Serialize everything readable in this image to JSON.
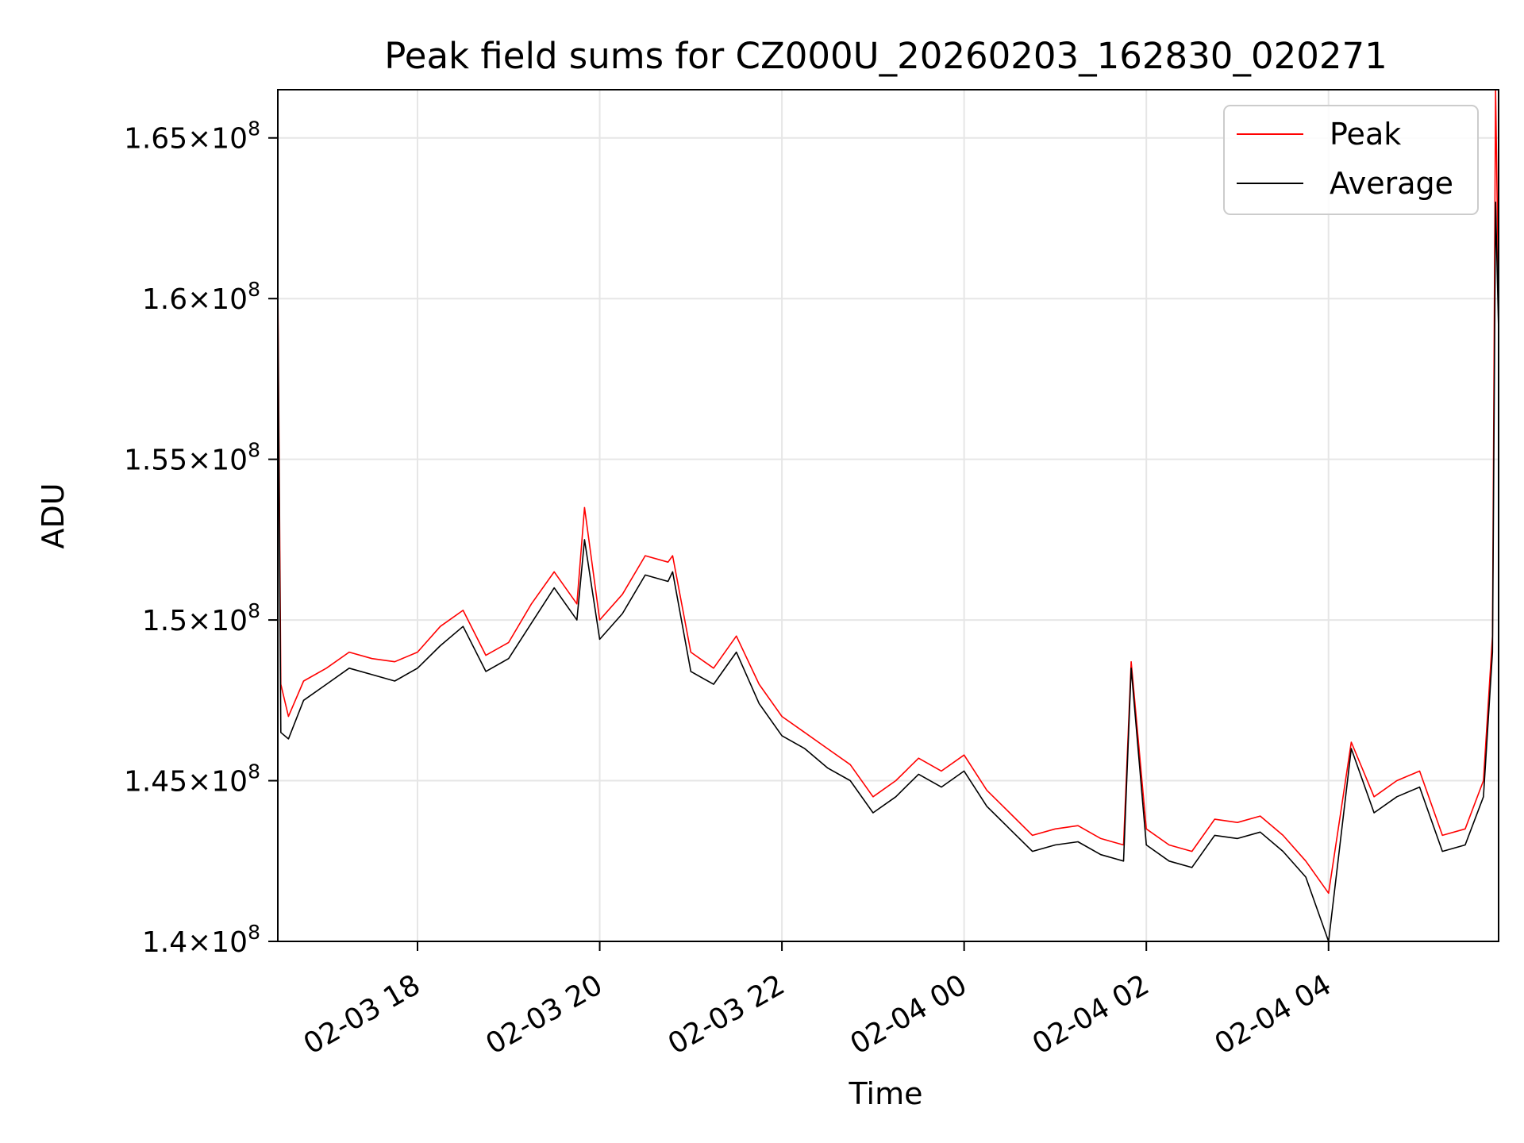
{
  "chart_data": {
    "type": "line",
    "title": "Peak field sums for CZ000U_20260203_162830_020271",
    "xlabel": "Time",
    "ylabel": "ADU",
    "ylim": [
      140000000,
      166500000
    ],
    "xlim": [
      "2026-02-03 16:28",
      "2026-02-04 05:52"
    ],
    "grid": true,
    "legend_position": "top-right",
    "x_ticks": [
      {
        "value": "2026-02-03 18:00",
        "label": "02-03 18"
      },
      {
        "value": "2026-02-03 20:00",
        "label": "02-03 20"
      },
      {
        "value": "2026-02-03 22:00",
        "label": "02-03 22"
      },
      {
        "value": "2026-02-04 00:00",
        "label": "02-04 00"
      },
      {
        "value": "2026-02-04 02:00",
        "label": "02-04 02"
      },
      {
        "value": "2026-02-04 04:00",
        "label": "02-04 04"
      }
    ],
    "y_ticks": [
      {
        "value": 140000000,
        "mantissa": "1.4"
      },
      {
        "value": 145000000,
        "mantissa": "1.45"
      },
      {
        "value": 150000000,
        "mantissa": "1.5"
      },
      {
        "value": 155000000,
        "mantissa": "1.55"
      },
      {
        "value": 160000000,
        "mantissa": "1.6"
      },
      {
        "value": 165000000,
        "mantissa": "1.65"
      }
    ],
    "y_tick_exponent": "8",
    "series": [
      {
        "name": "Peak",
        "color": "#ff0000",
        "x": [
          "2026-02-03 16:28",
          "2026-02-03 16:30",
          "2026-02-03 16:35",
          "2026-02-03 16:45",
          "2026-02-03 17:00",
          "2026-02-03 17:15",
          "2026-02-03 17:30",
          "2026-02-03 17:45",
          "2026-02-03 18:00",
          "2026-02-03 18:15",
          "2026-02-03 18:30",
          "2026-02-03 18:45",
          "2026-02-03 19:00",
          "2026-02-03 19:15",
          "2026-02-03 19:30",
          "2026-02-03 19:45",
          "2026-02-03 19:50",
          "2026-02-03 20:00",
          "2026-02-03 20:15",
          "2026-02-03 20:30",
          "2026-02-03 20:45",
          "2026-02-03 20:48",
          "2026-02-03 21:00",
          "2026-02-03 21:15",
          "2026-02-03 21:30",
          "2026-02-03 21:45",
          "2026-02-03 22:00",
          "2026-02-03 22:15",
          "2026-02-03 22:30",
          "2026-02-03 22:45",
          "2026-02-03 23:00",
          "2026-02-03 23:15",
          "2026-02-03 23:30",
          "2026-02-03 23:45",
          "2026-02-04 00:00",
          "2026-02-04 00:15",
          "2026-02-04 00:30",
          "2026-02-04 00:45",
          "2026-02-04 01:00",
          "2026-02-04 01:15",
          "2026-02-04 01:30",
          "2026-02-04 01:45",
          "2026-02-04 01:50",
          "2026-02-04 02:00",
          "2026-02-04 02:15",
          "2026-02-04 02:30",
          "2026-02-04 02:45",
          "2026-02-04 03:00",
          "2026-02-04 03:15",
          "2026-02-04 03:30",
          "2026-02-04 03:45",
          "2026-02-04 04:00",
          "2026-02-04 04:15",
          "2026-02-04 04:30",
          "2026-02-04 04:45",
          "2026-02-04 05:00",
          "2026-02-04 05:15",
          "2026-02-04 05:30",
          "2026-02-04 05:42",
          "2026-02-04 05:48",
          "2026-02-04 05:50",
          "2026-02-04 05:52"
        ],
        "values": [
          160500000,
          148000000,
          147000000,
          148100000,
          148500000,
          149000000,
          148800000,
          148700000,
          149000000,
          149800000,
          150300000,
          148900000,
          149300000,
          150500000,
          151500000,
          150500000,
          153500000,
          150000000,
          150800000,
          152000000,
          151800000,
          152000000,
          149000000,
          148500000,
          149500000,
          148000000,
          147000000,
          146500000,
          146000000,
          145500000,
          144500000,
          145000000,
          145700000,
          145300000,
          145800000,
          144700000,
          144000000,
          143300000,
          143500000,
          143600000,
          143200000,
          143000000,
          148700000,
          143500000,
          143000000,
          142800000,
          143800000,
          143700000,
          143900000,
          143300000,
          142500000,
          141500000,
          146200000,
          144500000,
          145000000,
          145300000,
          143300000,
          143500000,
          145000000,
          149500000,
          166500000,
          160000000
        ]
      },
      {
        "name": "Average",
        "color": "#000000",
        "x": [
          "2026-02-03 16:28",
          "2026-02-03 16:30",
          "2026-02-03 16:35",
          "2026-02-03 16:45",
          "2026-02-03 17:00",
          "2026-02-03 17:15",
          "2026-02-03 17:30",
          "2026-02-03 17:45",
          "2026-02-03 18:00",
          "2026-02-03 18:15",
          "2026-02-03 18:30",
          "2026-02-03 18:45",
          "2026-02-03 19:00",
          "2026-02-03 19:15",
          "2026-02-03 19:30",
          "2026-02-03 19:45",
          "2026-02-03 19:50",
          "2026-02-03 20:00",
          "2026-02-03 20:15",
          "2026-02-03 20:30",
          "2026-02-03 20:45",
          "2026-02-03 20:48",
          "2026-02-03 21:00",
          "2026-02-03 21:15",
          "2026-02-03 21:30",
          "2026-02-03 21:45",
          "2026-02-03 22:00",
          "2026-02-03 22:15",
          "2026-02-03 22:30",
          "2026-02-03 22:45",
          "2026-02-03 23:00",
          "2026-02-03 23:15",
          "2026-02-03 23:30",
          "2026-02-03 23:45",
          "2026-02-04 00:00",
          "2026-02-04 00:15",
          "2026-02-04 00:30",
          "2026-02-04 00:45",
          "2026-02-04 01:00",
          "2026-02-04 01:15",
          "2026-02-04 01:30",
          "2026-02-04 01:45",
          "2026-02-04 01:50",
          "2026-02-04 02:00",
          "2026-02-04 02:15",
          "2026-02-04 02:30",
          "2026-02-04 02:45",
          "2026-02-04 03:00",
          "2026-02-04 03:15",
          "2026-02-04 03:30",
          "2026-02-04 03:45",
          "2026-02-04 04:00",
          "2026-02-04 04:15",
          "2026-02-04 04:30",
          "2026-02-04 04:45",
          "2026-02-04 05:00",
          "2026-02-04 05:15",
          "2026-02-04 05:30",
          "2026-02-04 05:42",
          "2026-02-04 05:48",
          "2026-02-04 05:50",
          "2026-02-04 05:52"
        ],
        "values": [
          160000000,
          146500000,
          146300000,
          147500000,
          148000000,
          148500000,
          148300000,
          148100000,
          148500000,
          149200000,
          149800000,
          148400000,
          148800000,
          149900000,
          151000000,
          150000000,
          152500000,
          149400000,
          150200000,
          151400000,
          151200000,
          151500000,
          148400000,
          148000000,
          149000000,
          147400000,
          146400000,
          146000000,
          145400000,
          145000000,
          144000000,
          144500000,
          145200000,
          144800000,
          145300000,
          144200000,
          143500000,
          142800000,
          143000000,
          143100000,
          142700000,
          142500000,
          148500000,
          143000000,
          142500000,
          142300000,
          143300000,
          143200000,
          143400000,
          142800000,
          142000000,
          140000000,
          146000000,
          144000000,
          144500000,
          144800000,
          142800000,
          143000000,
          144500000,
          149000000,
          163000000,
          159000000
        ]
      }
    ]
  }
}
